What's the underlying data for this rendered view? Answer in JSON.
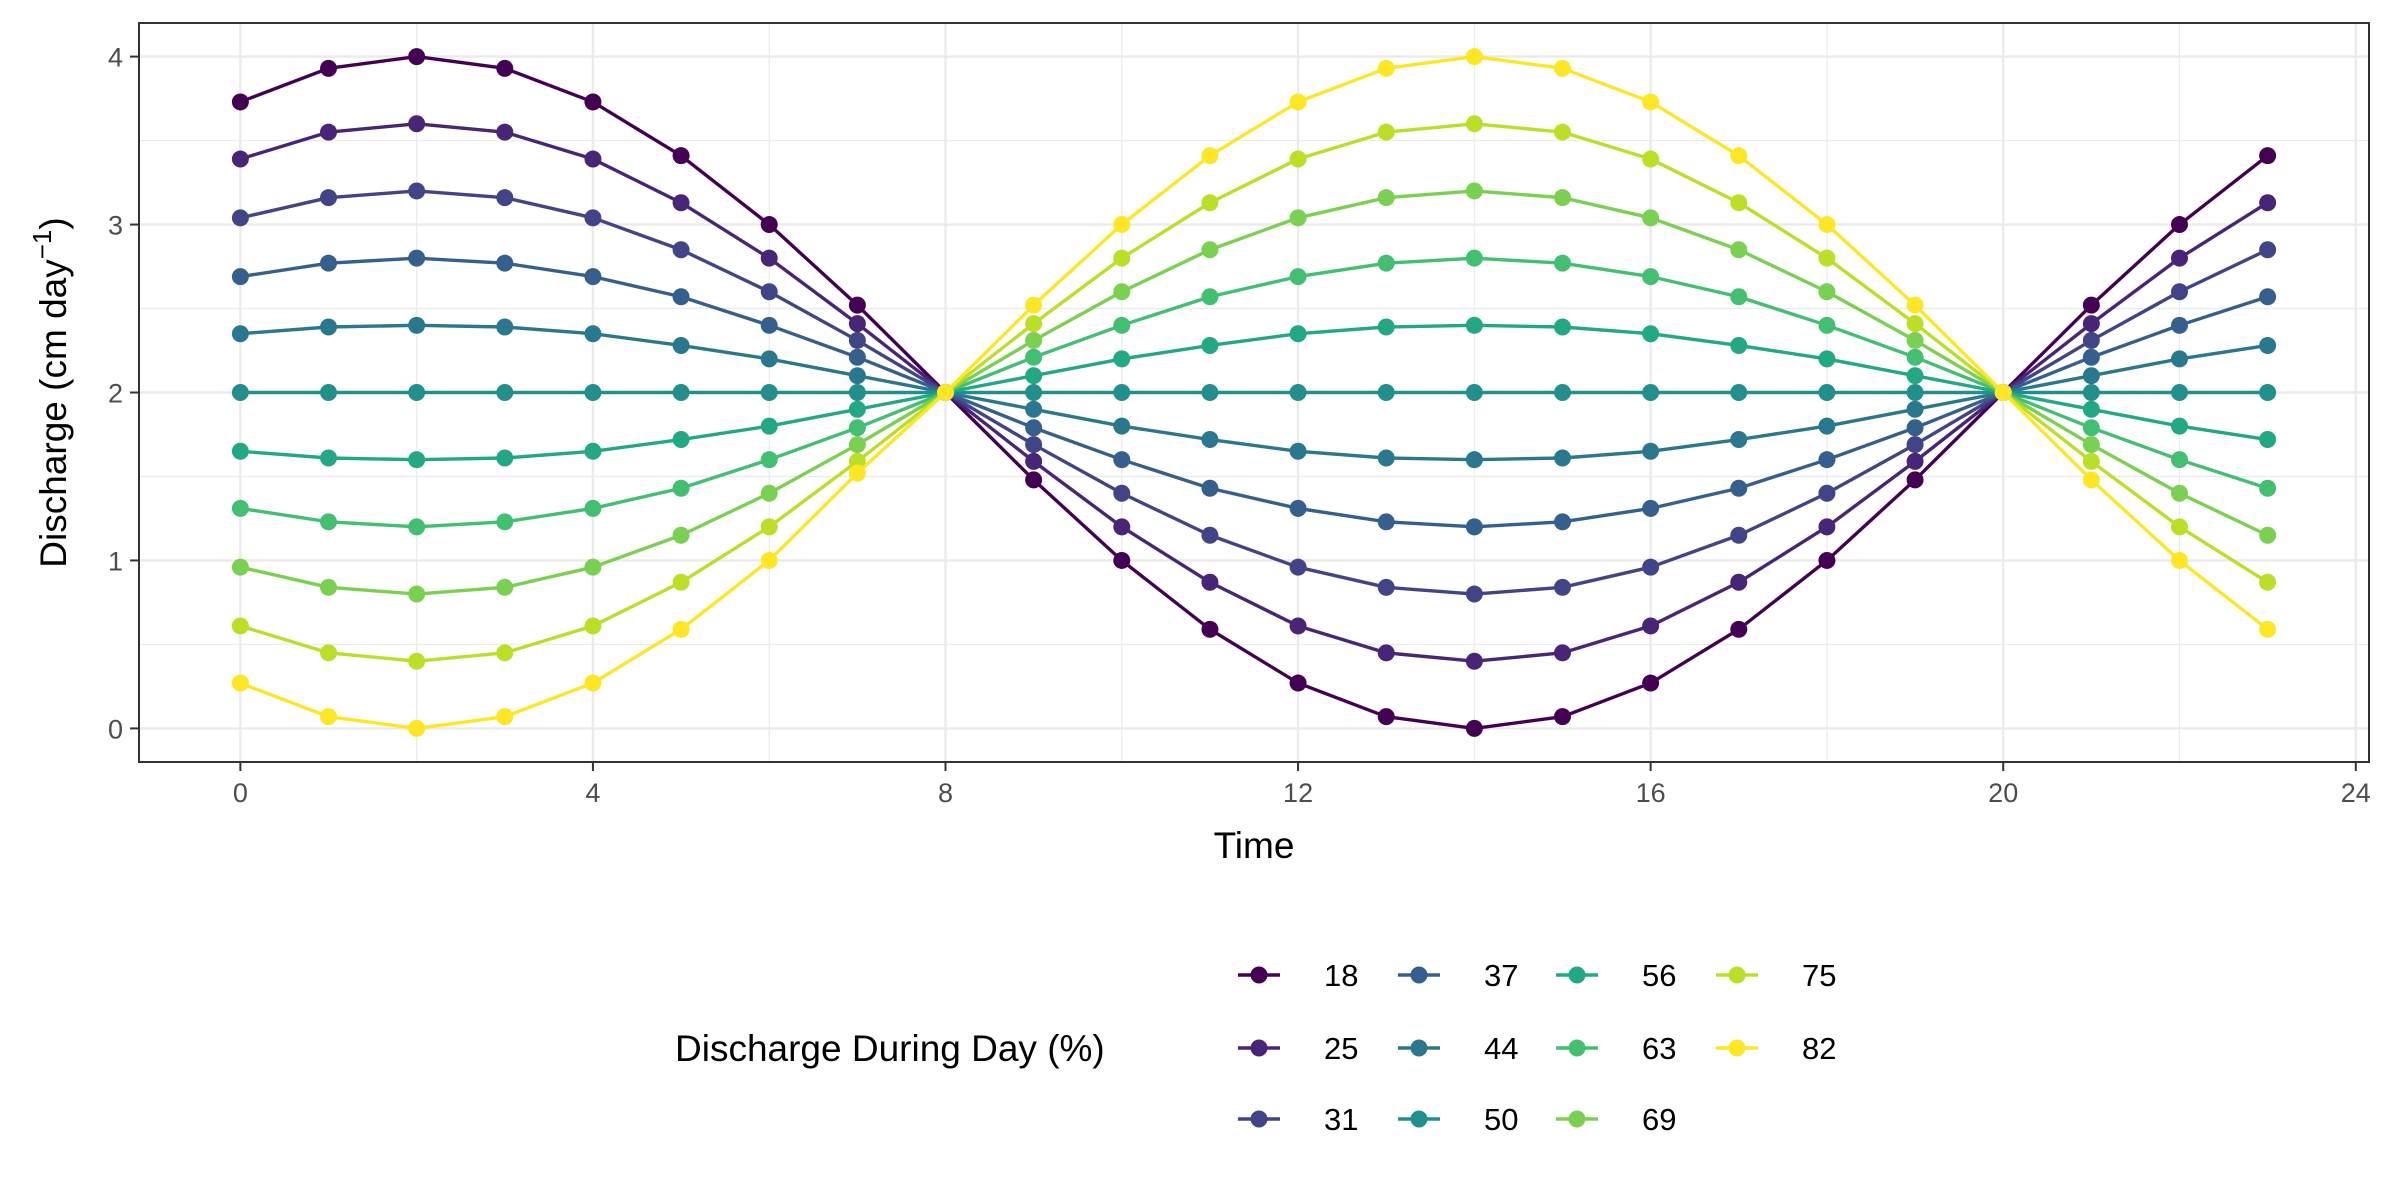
{
  "chart_data": {
    "type": "line",
    "xlabel": "Time",
    "ylabel": "Discharge (cm day",
    "ylabel_sup": "−1",
    "ylabel_close": ")",
    "xlim": [
      -1.15,
      24.15
    ],
    "ylim": [
      -0.2,
      4.2
    ],
    "xticks": [
      0,
      4,
      8,
      12,
      16,
      20,
      24
    ],
    "yticks": [
      0,
      1,
      2,
      3,
      4
    ],
    "x": [
      0,
      1,
      2,
      3,
      4,
      5,
      6,
      7,
      8,
      9,
      10,
      11,
      12,
      13,
      14,
      15,
      16,
      17,
      18,
      19,
      20,
      21,
      22,
      23
    ],
    "grid": true,
    "legend": {
      "title": "Discharge During Day (%)",
      "position": "bottom"
    },
    "series": [
      {
        "name": "18",
        "color": "#440154",
        "values": [
          3.73,
          3.93,
          4.0,
          3.93,
          3.73,
          3.41,
          3.0,
          2.52,
          2.0,
          1.48,
          1.0,
          0.59,
          0.27,
          0.07,
          0.0,
          0.07,
          0.27,
          0.59,
          1.0,
          1.48,
          2.0,
          2.52,
          3.0,
          3.41
        ]
      },
      {
        "name": "25",
        "color": "#482576",
        "values": [
          3.39,
          3.55,
          3.6,
          3.55,
          3.39,
          3.13,
          2.8,
          2.41,
          2.0,
          1.59,
          1.2,
          0.87,
          0.61,
          0.45,
          0.4,
          0.45,
          0.61,
          0.87,
          1.2,
          1.59,
          2.0,
          2.41,
          2.8,
          3.13
        ]
      },
      {
        "name": "31",
        "color": "#414487",
        "values": [
          3.04,
          3.16,
          3.2,
          3.16,
          3.04,
          2.85,
          2.6,
          2.31,
          2.0,
          1.69,
          1.4,
          1.15,
          0.96,
          0.84,
          0.8,
          0.84,
          0.96,
          1.15,
          1.4,
          1.69,
          2.0,
          2.31,
          2.6,
          2.85
        ]
      },
      {
        "name": "37",
        "color": "#35608D",
        "values": [
          2.69,
          2.77,
          2.8,
          2.77,
          2.69,
          2.57,
          2.4,
          2.21,
          2.0,
          1.79,
          1.6,
          1.43,
          1.31,
          1.23,
          1.2,
          1.23,
          1.31,
          1.43,
          1.6,
          1.79,
          2.0,
          2.21,
          2.4,
          2.57
        ]
      },
      {
        "name": "44",
        "color": "#2A788E",
        "values": [
          2.35,
          2.39,
          2.4,
          2.39,
          2.35,
          2.28,
          2.2,
          2.1,
          2.0,
          1.9,
          1.8,
          1.72,
          1.65,
          1.61,
          1.6,
          1.61,
          1.65,
          1.72,
          1.8,
          1.9,
          2.0,
          2.1,
          2.2,
          2.28
        ]
      },
      {
        "name": "50",
        "color": "#21908C",
        "values": [
          2.0,
          2.0,
          2.0,
          2.0,
          2.0,
          2.0,
          2.0,
          2.0,
          2.0,
          2.0,
          2.0,
          2.0,
          2.0,
          2.0,
          2.0,
          2.0,
          2.0,
          2.0,
          2.0,
          2.0,
          2.0,
          2.0,
          2.0,
          2.0
        ]
      },
      {
        "name": "56",
        "color": "#22A884",
        "values": [
          1.65,
          1.61,
          1.6,
          1.61,
          1.65,
          1.72,
          1.8,
          1.9,
          2.0,
          2.1,
          2.2,
          2.28,
          2.35,
          2.39,
          2.4,
          2.39,
          2.35,
          2.28,
          2.2,
          2.1,
          2.0,
          1.9,
          1.8,
          1.72
        ]
      },
      {
        "name": "63",
        "color": "#43BF71",
        "values": [
          1.31,
          1.23,
          1.2,
          1.23,
          1.31,
          1.43,
          1.6,
          1.79,
          2.0,
          2.21,
          2.4,
          2.57,
          2.69,
          2.77,
          2.8,
          2.77,
          2.69,
          2.57,
          2.4,
          2.21,
          2.0,
          1.79,
          1.6,
          1.43
        ]
      },
      {
        "name": "69",
        "color": "#7AD151",
        "values": [
          0.96,
          0.84,
          0.8,
          0.84,
          0.96,
          1.15,
          1.4,
          1.69,
          2.0,
          2.31,
          2.6,
          2.85,
          3.04,
          3.16,
          3.2,
          3.16,
          3.04,
          2.85,
          2.6,
          2.31,
          2.0,
          1.69,
          1.4,
          1.15
        ]
      },
      {
        "name": "75",
        "color": "#BBDF27",
        "values": [
          0.61,
          0.45,
          0.4,
          0.45,
          0.61,
          0.87,
          1.2,
          1.59,
          2.0,
          2.41,
          2.8,
          3.13,
          3.39,
          3.55,
          3.6,
          3.55,
          3.39,
          3.13,
          2.8,
          2.41,
          2.0,
          1.59,
          1.2,
          0.87
        ]
      },
      {
        "name": "82",
        "color": "#FDE725",
        "values": [
          0.27,
          0.07,
          0.0,
          0.07,
          0.27,
          0.59,
          1.0,
          1.52,
          2.0,
          2.52,
          3.0,
          3.41,
          3.73,
          3.93,
          4.0,
          3.93,
          3.73,
          3.41,
          3.0,
          2.52,
          2.0,
          1.48,
          1.0,
          0.59
        ]
      }
    ]
  }
}
